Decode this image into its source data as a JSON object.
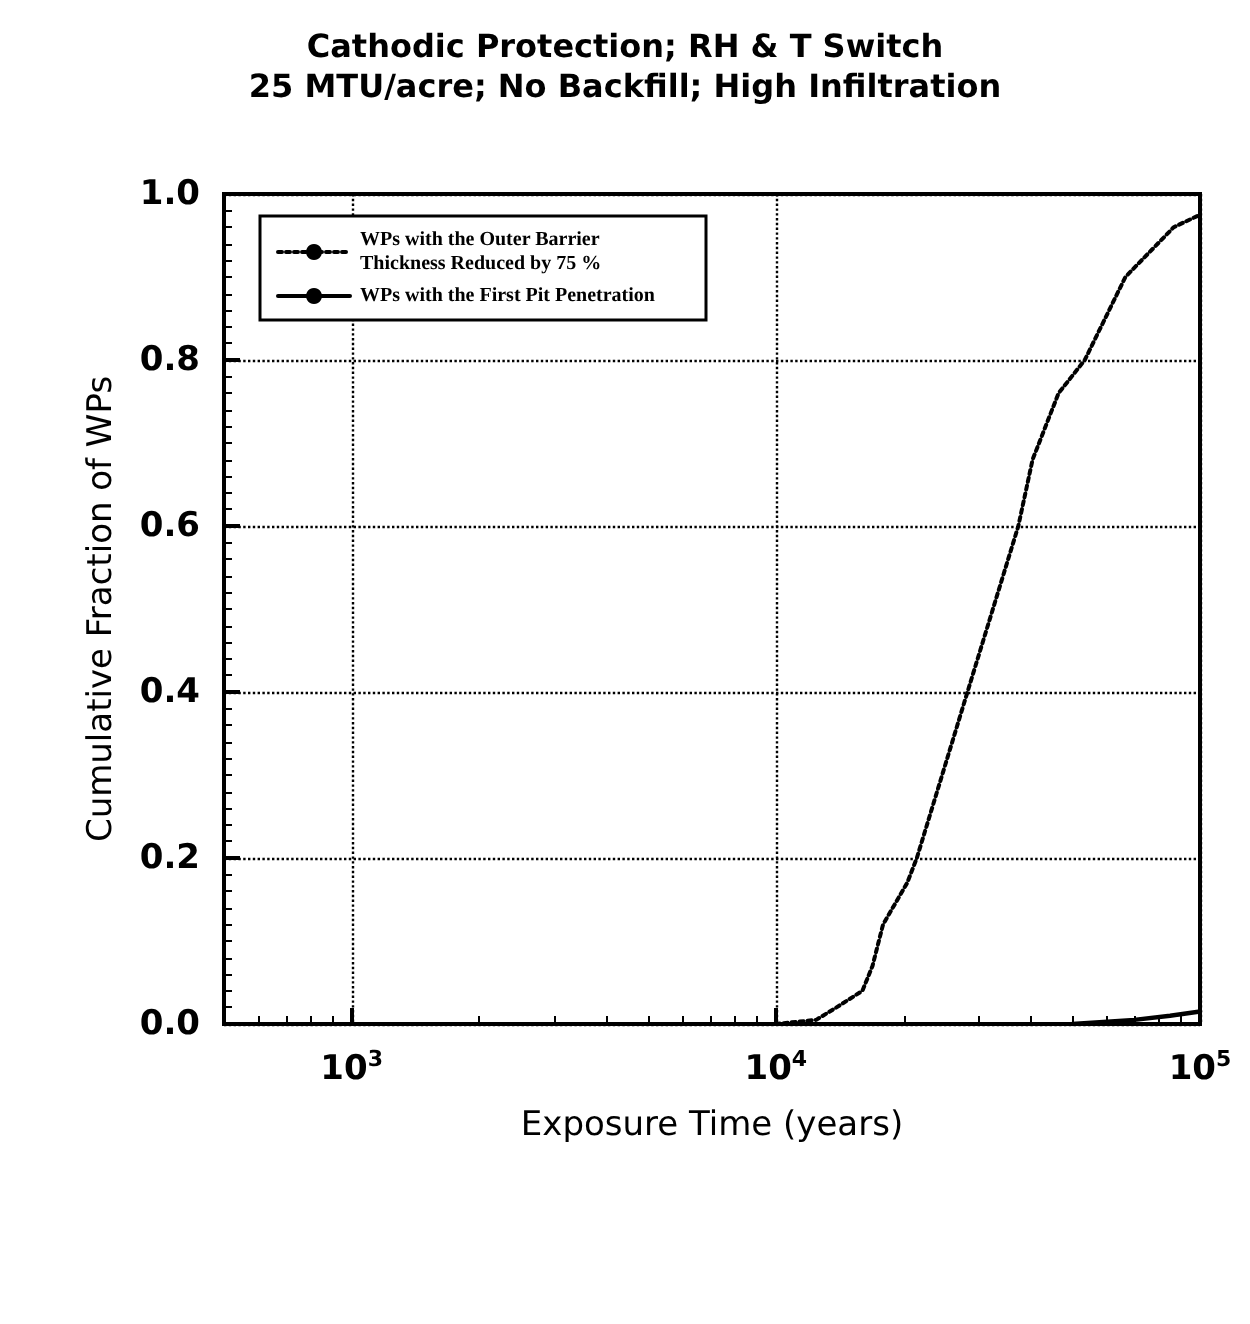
{
  "chart_data": {
    "type": "line",
    "title": "Cathodic Protection; RH & T Switch",
    "subtitle": "25 MTU/acre; No Backfill; High Infiltration",
    "xlabel": "Exposure Time (years)",
    "ylabel": "Cumulative Fraction of WPs",
    "log": "x",
    "xlim": [
      500,
      100000
    ],
    "xticks": [
      {
        "value": 1000,
        "label": "10$^{3}$"
      },
      {
        "value": 10000,
        "label": "10$^{4}$"
      },
      {
        "value": 100000,
        "label": "10$^{5}$"
      }
    ],
    "ylim": [
      0,
      1
    ],
    "yticks": [
      {
        "value": 0,
        "label": "0.0"
      },
      0.2,
      0.4,
      0.6,
      0.8,
      {
        "value": 1,
        "label": "1.0"
      }
    ],
    "grid": true,
    "legend": "top left",
    "marker": "none",
    "series": [
      {
        "name": "WPs with the Outer Barrier Thickness Reduced by 75 %",
        "color": "#000000",
        "line_style": "dotted",
        "x": [
          10000,
          12450,
          13900,
          16000,
          16900,
          17900,
          20400,
          21500,
          28300,
          37300,
          40300,
          46400,
          53500,
          66700,
          86700,
          100000
        ],
        "values": [
          0,
          0.005,
          0.02,
          0.04,
          0.07,
          0.12,
          0.17,
          0.2,
          0.4,
          0.6,
          0.68,
          0.76,
          0.8,
          0.9,
          0.96,
          0.975
        ]
      },
      {
        "name": "WPs with the First Pit Penetration",
        "color": "#000000",
        "line_style": "solid",
        "x": [
          50000,
          70000,
          85000,
          100000
        ],
        "values": [
          0,
          0.005,
          0.01,
          0.015
        ]
      }
    ]
  }
}
